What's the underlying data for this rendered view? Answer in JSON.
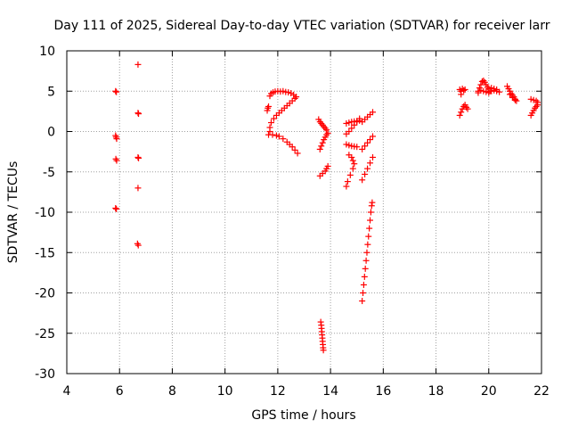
{
  "chart_data": {
    "type": "scatter",
    "title": "Day 111 of 2025, Sidereal Day-to-day VTEC variation (SDTVAR) for receiver larr",
    "xlabel": "GPS time / hours",
    "ylabel": "SDTVAR / TECUs",
    "xlim": [
      4,
      22
    ],
    "ylim": [
      -30,
      10
    ],
    "xticks": [
      "4",
      "6",
      "8",
      "10",
      "12",
      "14",
      "16",
      "18",
      "20",
      "22"
    ],
    "yticks": [
      "10",
      "5",
      "0",
      "-5",
      "-10",
      "-15",
      "-20",
      "-25",
      "-30"
    ],
    "grid": true,
    "marker": "plus",
    "color": "#ff0000",
    "points": [
      [
        5.85,
        5.0
      ],
      [
        5.88,
        4.9
      ],
      [
        5.85,
        -0.5
      ],
      [
        5.87,
        -0.7
      ],
      [
        5.89,
        -0.9
      ],
      [
        5.86,
        -3.4
      ],
      [
        5.89,
        -3.6
      ],
      [
        5.85,
        -9.5
      ],
      [
        5.88,
        -9.6
      ],
      [
        6.7,
        8.3
      ],
      [
        6.7,
        2.3
      ],
      [
        6.72,
        2.2
      ],
      [
        6.7,
        -3.2
      ],
      [
        6.72,
        -3.3
      ],
      [
        6.7,
        -7.0
      ],
      [
        6.68,
        -13.9
      ],
      [
        6.71,
        -14.1
      ],
      [
        11.6,
        2.6
      ],
      [
        11.62,
        2.9
      ],
      [
        11.65,
        3.1
      ],
      [
        11.7,
        4.4
      ],
      [
        11.75,
        4.7
      ],
      [
        11.82,
        4.85
      ],
      [
        11.9,
        4.95
      ],
      [
        12.0,
        5.0
      ],
      [
        12.1,
        4.95
      ],
      [
        12.2,
        5.0
      ],
      [
        12.3,
        4.9
      ],
      [
        12.4,
        4.85
      ],
      [
        12.5,
        4.75
      ],
      [
        12.6,
        4.55
      ],
      [
        12.7,
        4.3
      ],
      [
        12.65,
        4.1
      ],
      [
        12.55,
        3.8
      ],
      [
        12.45,
        3.5
      ],
      [
        12.35,
        3.2
      ],
      [
        12.25,
        2.9
      ],
      [
        12.15,
        2.6
      ],
      [
        12.05,
        2.3
      ],
      [
        11.95,
        2.0
      ],
      [
        11.85,
        1.6
      ],
      [
        11.75,
        1.1
      ],
      [
        11.7,
        0.5
      ],
      [
        11.7,
        0.0
      ],
      [
        11.65,
        -0.4
      ],
      [
        11.8,
        -0.4
      ],
      [
        11.95,
        -0.5
      ],
      [
        12.05,
        -0.6
      ],
      [
        12.2,
        -0.9
      ],
      [
        12.35,
        -1.3
      ],
      [
        12.45,
        -1.6
      ],
      [
        12.55,
        -1.9
      ],
      [
        12.65,
        -2.3
      ],
      [
        12.75,
        -2.7
      ],
      [
        13.55,
        1.5
      ],
      [
        13.6,
        1.2
      ],
      [
        13.65,
        1.0
      ],
      [
        13.7,
        0.8
      ],
      [
        13.75,
        0.6
      ],
      [
        13.8,
        0.4
      ],
      [
        13.85,
        0.2
      ],
      [
        13.6,
        -2.2
      ],
      [
        13.65,
        -1.8
      ],
      [
        13.7,
        -1.4
      ],
      [
        13.75,
        -1.0
      ],
      [
        13.8,
        -0.7
      ],
      [
        13.85,
        -0.4
      ],
      [
        13.9,
        -0.2
      ],
      [
        13.6,
        -5.5
      ],
      [
        13.7,
        -5.2
      ],
      [
        13.8,
        -4.9
      ],
      [
        13.85,
        -4.6
      ],
      [
        13.9,
        -4.3
      ],
      [
        13.63,
        -23.6
      ],
      [
        13.65,
        -24.0
      ],
      [
        13.66,
        -24.4
      ],
      [
        13.67,
        -24.8
      ],
      [
        13.68,
        -25.2
      ],
      [
        13.69,
        -25.6
      ],
      [
        13.7,
        -26.0
      ],
      [
        13.71,
        -26.4
      ],
      [
        13.72,
        -26.8
      ],
      [
        13.73,
        -27.1
      ],
      [
        14.6,
        1.0
      ],
      [
        14.7,
        1.1
      ],
      [
        14.8,
        1.2
      ],
      [
        14.9,
        1.25
      ],
      [
        15.0,
        1.3
      ],
      [
        15.1,
        1.35
      ],
      [
        14.6,
        -0.3
      ],
      [
        14.7,
        0.0
      ],
      [
        14.8,
        0.4
      ],
      [
        14.9,
        0.8
      ],
      [
        15.0,
        1.2
      ],
      [
        15.1,
        1.6
      ],
      [
        14.6,
        -1.6
      ],
      [
        14.7,
        -1.7
      ],
      [
        14.8,
        -1.8
      ],
      [
        14.9,
        -1.85
      ],
      [
        15.0,
        -1.9
      ],
      [
        14.7,
        -2.9
      ],
      [
        14.8,
        -3.2
      ],
      [
        14.85,
        -3.6
      ],
      [
        14.9,
        -4.0
      ],
      [
        14.85,
        -4.6
      ],
      [
        14.75,
        -5.4
      ],
      [
        14.65,
        -6.2
      ],
      [
        14.6,
        -6.8
      ],
      [
        15.2,
        1.2
      ],
      [
        15.3,
        1.5
      ],
      [
        15.4,
        1.8
      ],
      [
        15.5,
        2.1
      ],
      [
        15.6,
        2.4
      ],
      [
        15.2,
        -2.2
      ],
      [
        15.3,
        -1.8
      ],
      [
        15.4,
        -1.4
      ],
      [
        15.5,
        -1.0
      ],
      [
        15.6,
        -0.6
      ],
      [
        15.2,
        -6.0
      ],
      [
        15.3,
        -5.3
      ],
      [
        15.4,
        -4.6
      ],
      [
        15.5,
        -3.9
      ],
      [
        15.6,
        -3.2
      ],
      [
        15.2,
        -21.0
      ],
      [
        15.23,
        -20.0
      ],
      [
        15.26,
        -19.0
      ],
      [
        15.29,
        -18.0
      ],
      [
        15.32,
        -17.0
      ],
      [
        15.35,
        -16.0
      ],
      [
        15.38,
        -15.0
      ],
      [
        15.41,
        -14.0
      ],
      [
        15.44,
        -13.0
      ],
      [
        15.47,
        -12.0
      ],
      [
        15.5,
        -11.0
      ],
      [
        15.53,
        -10.0
      ],
      [
        15.56,
        -9.2
      ],
      [
        15.58,
        -8.8
      ],
      [
        18.9,
        5.2
      ],
      [
        18.95,
        5.0
      ],
      [
        19.0,
        5.3
      ],
      [
        19.05,
        5.1
      ],
      [
        19.1,
        5.2
      ],
      [
        18.95,
        4.6
      ],
      [
        18.9,
        2.0
      ],
      [
        18.95,
        2.4
      ],
      [
        19.0,
        2.8
      ],
      [
        19.05,
        3.1
      ],
      [
        19.1,
        3.3
      ],
      [
        19.15,
        3.0
      ],
      [
        19.2,
        2.8
      ],
      [
        19.6,
        5.0
      ],
      [
        19.65,
        5.4
      ],
      [
        19.7,
        5.8
      ],
      [
        19.75,
        6.2
      ],
      [
        19.8,
        6.3
      ],
      [
        19.85,
        6.1
      ],
      [
        19.9,
        5.8
      ],
      [
        19.95,
        5.5
      ],
      [
        20.0,
        5.3
      ],
      [
        20.05,
        5.0
      ],
      [
        19.6,
        4.8
      ],
      [
        19.7,
        5.1
      ],
      [
        19.8,
        5.0
      ],
      [
        19.9,
        4.9
      ],
      [
        20.0,
        4.8
      ],
      [
        20.1,
        5.0
      ],
      [
        20.2,
        5.1
      ],
      [
        20.3,
        5.0
      ],
      [
        20.4,
        4.9
      ],
      [
        20.1,
        5.4
      ],
      [
        20.2,
        5.3
      ],
      [
        20.3,
        5.2
      ],
      [
        20.7,
        5.6
      ],
      [
        20.75,
        5.3
      ],
      [
        20.8,
        5.0
      ],
      [
        20.85,
        4.7
      ],
      [
        20.9,
        4.5
      ],
      [
        20.95,
        4.3
      ],
      [
        21.0,
        4.0
      ],
      [
        21.05,
        3.8
      ],
      [
        20.8,
        4.6
      ],
      [
        20.9,
        4.2
      ],
      [
        21.0,
        3.9
      ],
      [
        21.6,
        4.0
      ],
      [
        21.7,
        3.9
      ],
      [
        21.8,
        3.8
      ],
      [
        21.85,
        3.6
      ],
      [
        21.6,
        2.0
      ],
      [
        21.65,
        2.3
      ],
      [
        21.7,
        2.6
      ],
      [
        21.75,
        2.9
      ],
      [
        21.8,
        3.1
      ],
      [
        21.85,
        3.3
      ]
    ]
  }
}
